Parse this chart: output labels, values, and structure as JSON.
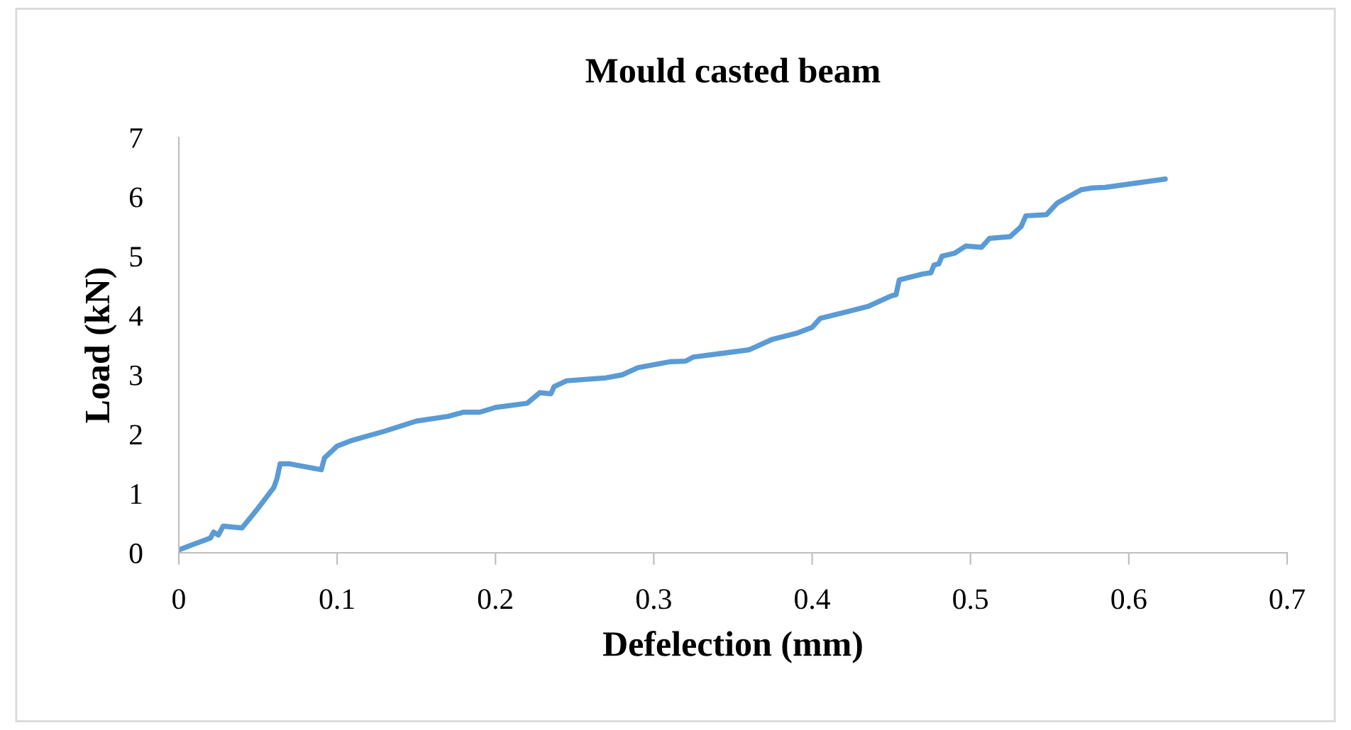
{
  "chart_data": {
    "type": "line",
    "title": "Mould casted beam",
    "xlabel": "Defelection (mm)",
    "ylabel": "Load (kN)",
    "xlim": [
      0,
      0.7
    ],
    "xticks": [
      0,
      0.1,
      0.2,
      0.3,
      0.4,
      0.5,
      0.6,
      0.7
    ],
    "ylim": [
      0,
      7
    ],
    "yticks": [
      0,
      1,
      2,
      3,
      4,
      5,
      6,
      7
    ],
    "grid": false,
    "legend": false,
    "series": [
      {
        "color": "#5b9bd5",
        "x": [
          0,
          0.01,
          0.02,
          0.022,
          0.025,
          0.028,
          0.04,
          0.05,
          0.06,
          0.062,
          0.064,
          0.07,
          0.09,
          0.092,
          0.1,
          0.11,
          0.13,
          0.15,
          0.17,
          0.18,
          0.19,
          0.2,
          0.22,
          0.228,
          0.235,
          0.237,
          0.245,
          0.27,
          0.28,
          0.29,
          0.31,
          0.32,
          0.325,
          0.36,
          0.375,
          0.39,
          0.4,
          0.405,
          0.42,
          0.435,
          0.45,
          0.453,
          0.455,
          0.47,
          0.475,
          0.477,
          0.48,
          0.482,
          0.49,
          0.497,
          0.507,
          0.512,
          0.525,
          0.532,
          0.535,
          0.548,
          0.555,
          0.57,
          0.577,
          0.585,
          0.623
        ],
        "values": [
          0.05,
          0.15,
          0.25,
          0.35,
          0.3,
          0.45,
          0.42,
          0.75,
          1.1,
          1.25,
          1.5,
          1.5,
          1.4,
          1.6,
          1.8,
          1.9,
          2.05,
          2.22,
          2.3,
          2.37,
          2.37,
          2.45,
          2.52,
          2.7,
          2.68,
          2.8,
          2.9,
          2.95,
          3.0,
          3.12,
          3.22,
          3.23,
          3.3,
          3.42,
          3.6,
          3.7,
          3.8,
          3.95,
          4.05,
          4.15,
          4.33,
          4.35,
          4.6,
          4.7,
          4.72,
          4.85,
          4.87,
          5.0,
          5.05,
          5.17,
          5.15,
          5.3,
          5.33,
          5.5,
          5.68,
          5.7,
          5.9,
          6.12,
          6.15,
          6.16,
          6.3
        ]
      }
    ]
  }
}
